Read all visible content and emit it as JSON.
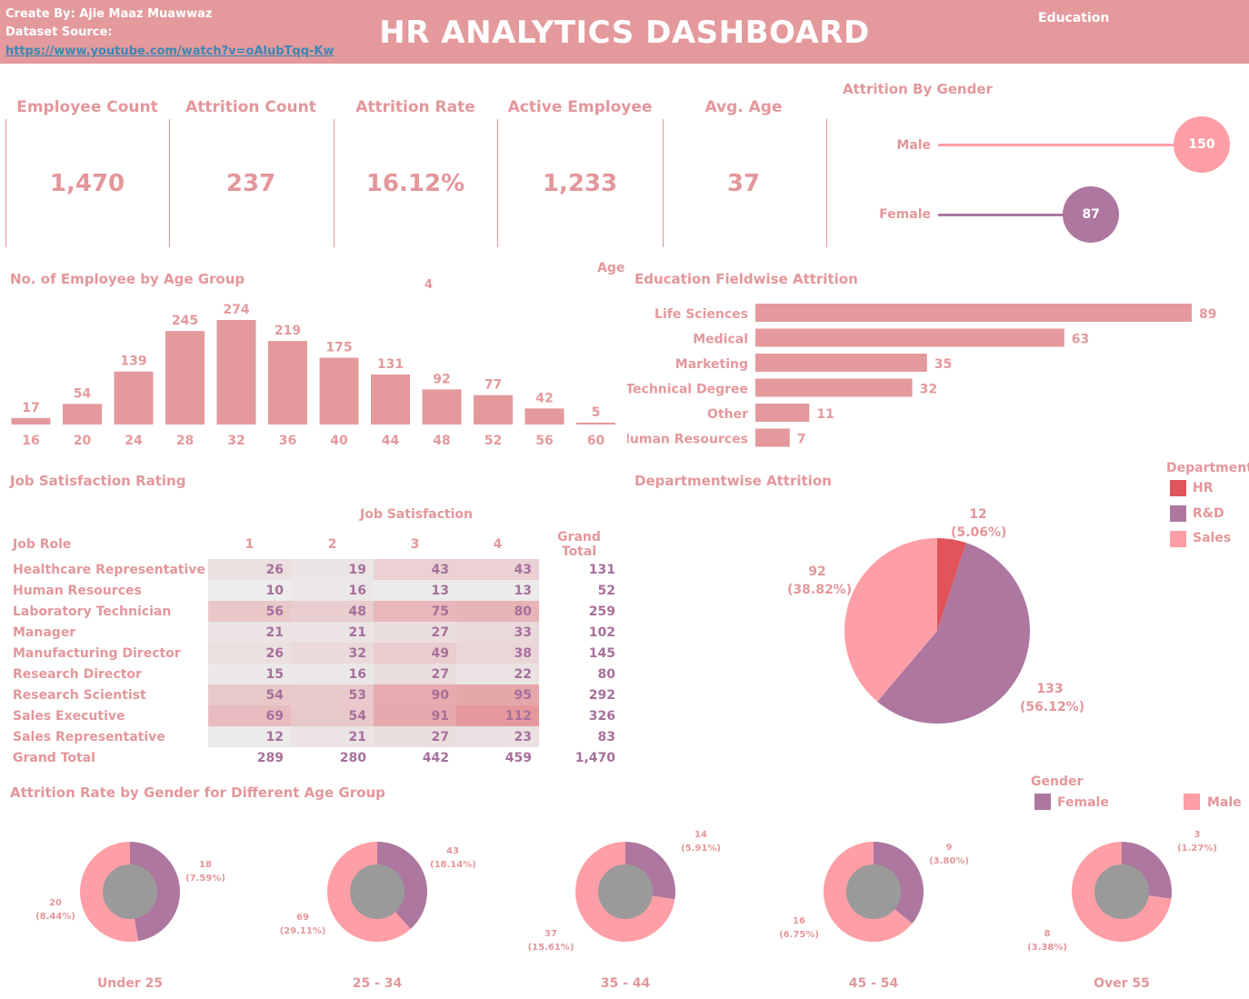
{
  "header": {
    "created_by": "Create By: Ajie Maaz Muawwaz",
    "dataset_source": "Dataset Source:",
    "link": "https://www.youtube.com/watch?v=oAlubTqq-Kw",
    "title": "HR ANALYTICS DASHBOARD",
    "filter_label": "Education"
  },
  "kpis": [
    {
      "title": "Employee Count",
      "value": "1,470"
    },
    {
      "title": "Attrition Count",
      "value": "237"
    },
    {
      "title": "Attrition Rate",
      "value": "16.12%"
    },
    {
      "title": "Active Employee",
      "value": "1,233"
    },
    {
      "title": "Avg. Age",
      "value": "37"
    }
  ],
  "labels": {
    "age_filter": "Age",
    "age_filter_value": "4",
    "job_satisfaction_col": "Job Satisfaction",
    "job_role_col": "Job Role",
    "grand_total_col": "Grand Total",
    "grand_total_row": "Grand Total"
  },
  "colors": {
    "pink": "#e4999c",
    "purple": "#ad779f",
    "sales": "#fe9ea6",
    "hr": "#e0545a",
    "donut_hole": "#9a9a9a"
  },
  "chart_data": [
    {
      "id": "attrition_by_gender",
      "type": "bar",
      "title": "Attrition By Gender",
      "categories": [
        "Male",
        "Female"
      ],
      "values": [
        150,
        87
      ]
    },
    {
      "id": "age_group",
      "type": "bar",
      "title": "No. of Employee by Age Group",
      "categories": [
        "16",
        "20",
        "24",
        "28",
        "32",
        "36",
        "40",
        "44",
        "48",
        "52",
        "56",
        "60"
      ],
      "values": [
        17,
        54,
        139,
        245,
        274,
        219,
        175,
        131,
        92,
        77,
        42,
        5
      ]
    },
    {
      "id": "education_field",
      "type": "bar",
      "title": "Education Fieldwise Attrition",
      "categories": [
        "Life Sciences",
        "Medical",
        "Marketing",
        "Technical Degree",
        "Other",
        "Human Resources"
      ],
      "values": [
        89,
        63,
        35,
        32,
        11,
        7
      ]
    },
    {
      "id": "job_satisfaction",
      "type": "table",
      "title": "Job Satisfaction Rating",
      "columns": [
        "1",
        "2",
        "3",
        "4"
      ],
      "rows": [
        {
          "role": "Healthcare Representative",
          "values": [
            26,
            19,
            43,
            43
          ],
          "total": "131"
        },
        {
          "role": "Human Resources",
          "values": [
            10,
            16,
            13,
            13
          ],
          "total": "52"
        },
        {
          "role": "Laboratory Technician",
          "values": [
            56,
            48,
            75,
            80
          ],
          "total": "259"
        },
        {
          "role": "Manager",
          "values": [
            21,
            21,
            27,
            33
          ],
          "total": "102"
        },
        {
          "role": "Manufacturing Director",
          "values": [
            26,
            32,
            49,
            38
          ],
          "total": "145"
        },
        {
          "role": "Research Director",
          "values": [
            15,
            16,
            27,
            22
          ],
          "total": "80"
        },
        {
          "role": "Research Scientist",
          "values": [
            54,
            53,
            90,
            95
          ],
          "total": "292"
        },
        {
          "role": "Sales Executive",
          "values": [
            69,
            54,
            91,
            112
          ],
          "total": "326"
        },
        {
          "role": "Sales Representative",
          "values": [
            12,
            21,
            27,
            23
          ],
          "total": "83"
        }
      ],
      "grand_total": [
        "289",
        "280",
        "442",
        "459",
        "1,470"
      ]
    },
    {
      "id": "department",
      "type": "pie",
      "title": "Departmentwise Attrition",
      "legend_title": "Department",
      "slices": [
        {
          "name": "HR",
          "value": 12,
          "pct": "(5.06%)"
        },
        {
          "name": "R&D",
          "value": 133,
          "pct": "(56.12%)"
        },
        {
          "name": "Sales",
          "value": 92,
          "pct": "(38.82%)"
        }
      ]
    },
    {
      "id": "gender_age",
      "type": "pie",
      "title": "Attrition Rate by Gender for Different Age Group",
      "legend_title": "Gender",
      "legend": [
        "Female",
        "Male"
      ],
      "groups": [
        {
          "name": "Under 25",
          "female": 18,
          "female_pct": "(7.59%)",
          "male": 20,
          "male_pct": "(8.44%)"
        },
        {
          "name": "25 - 34",
          "female": 43,
          "female_pct": "(18.14%)",
          "male": 69,
          "male_pct": "(29.11%)"
        },
        {
          "name": "35 - 44",
          "female": 14,
          "female_pct": "(5.91%)",
          "male": 37,
          "male_pct": "(15.61%)"
        },
        {
          "name": "45 - 54",
          "female": 9,
          "female_pct": "(3.80%)",
          "male": 16,
          "male_pct": "(6.75%)"
        },
        {
          "name": "Over 55",
          "female": 3,
          "female_pct": "(1.27%)",
          "male": 8,
          "male_pct": "(3.38%)"
        }
      ]
    }
  ]
}
